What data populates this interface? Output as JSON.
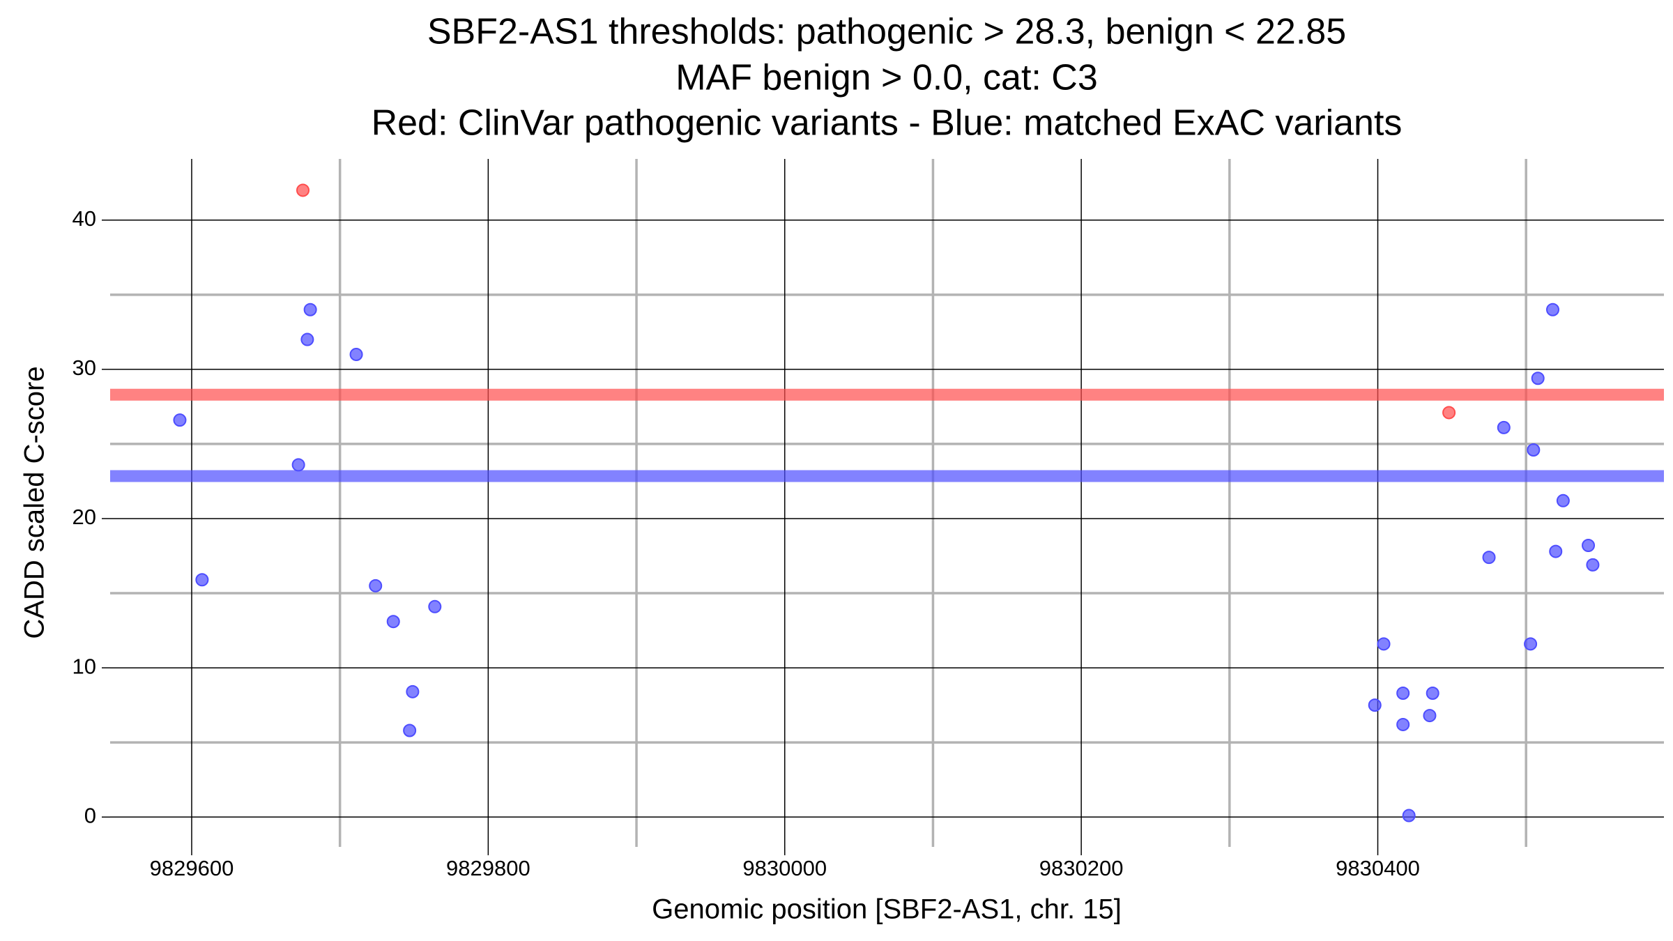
{
  "chart_data": {
    "type": "scatter",
    "title": [
      "SBF2-AS1 thresholds: pathogenic > 28.3, benign < 22.85",
      "MAF benign > 0.0, cat: C3",
      "Red: ClinVar pathogenic variants - Blue: matched ExAC variants"
    ],
    "x_label": "Genomic position [SBF2-AS1, chr. 15]",
    "y_label": "CADD scaled C-score",
    "xlim": [
      9829545,
      9830593
    ],
    "ylim": [
      -2,
      44.1
    ],
    "xticks": [
      9829600,
      9829800,
      9830000,
      9830200,
      9830400
    ],
    "yticks": [
      0,
      10,
      20,
      30,
      40
    ],
    "xminor": [
      9829700,
      9829900,
      9830100,
      9830300,
      9830500
    ],
    "yminor": [
      5,
      15,
      25,
      35
    ],
    "grid": true,
    "thresholds": [
      {
        "value": 28.3,
        "color": "#ff4d4d"
      },
      {
        "value": 22.85,
        "color": "#4d4dff"
      }
    ],
    "series": [
      {
        "color": "#4d4dff",
        "x": [
          9829592,
          9829607,
          9829672,
          9829678,
          9829680,
          9829711,
          9829724,
          9829736,
          9829749,
          9829747,
          9829764,
          9830398,
          9830404,
          9830417,
          9830417,
          9830421,
          9830435,
          9830437,
          9830475,
          9830485,
          9830503,
          9830505,
          9830508,
          9830518,
          9830520,
          9830525,
          9830542,
          9830545
        ],
        "values": [
          26.6,
          15.9,
          23.6,
          32.0,
          34.0,
          31.0,
          15.5,
          13.1,
          8.4,
          5.8,
          14.1,
          7.5,
          11.6,
          8.3,
          6.2,
          0.1,
          6.8,
          8.3,
          17.4,
          26.1,
          11.6,
          24.6,
          29.4,
          34.0,
          17.8,
          21.2,
          18.2,
          16.9
        ]
      },
      {
        "color": "#ff4d4d",
        "x": [
          9829675,
          9830448
        ],
        "values": [
          42.0,
          27.1
        ]
      }
    ]
  }
}
